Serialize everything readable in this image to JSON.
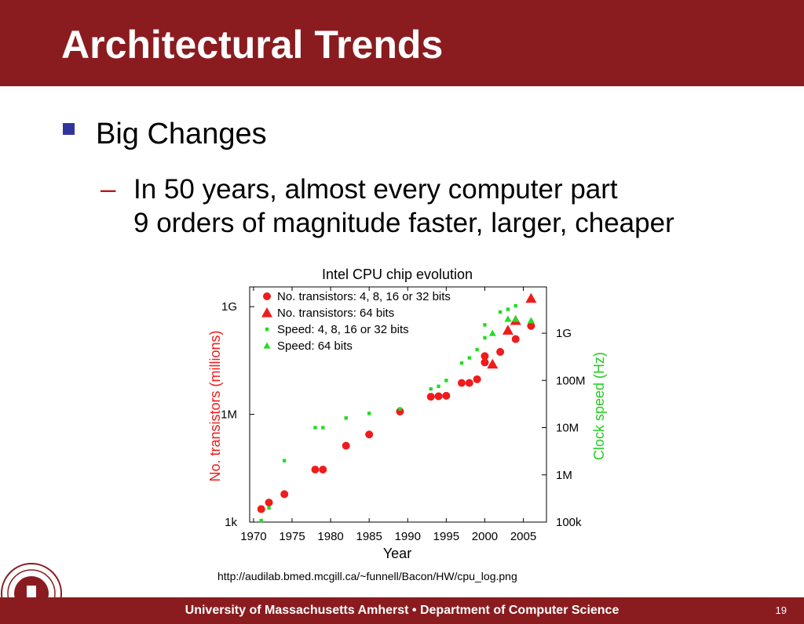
{
  "slide": {
    "title": "Architectural Trends",
    "bullet1": "Big Changes",
    "bullet2_dash": "–",
    "bullet2_line1": "In 50 years, almost every computer part",
    "bullet2_line2": "9 orders of magnitude faster, larger, cheaper",
    "source_url": "http://audilab.bmed.mcgill.ca/~funnell/Bacon/HW/cpu_log.png",
    "footer_text": "University of Massachusetts Amherst • Department of Computer Science",
    "page_number": "19"
  },
  "colors": {
    "brand": "#8a1c1f",
    "bullet_square": "#3333a0",
    "dash": "#b31b1b",
    "transistors": "#ee1c1c",
    "speed": "#22dd22"
  },
  "chart_data": {
    "type": "scatter",
    "title": "Intel CPU chip evolution",
    "xlabel": "Year",
    "ylabel_left": "No. transistors (millions)",
    "ylabel_right": "Clock speed (Hz)",
    "x_ticks": [
      "1970",
      "1975",
      "1980",
      "1985",
      "1990",
      "1995",
      "2000",
      "2005"
    ],
    "y_left_ticks": [
      "1k",
      "1M",
      "1G"
    ],
    "y_right_ticks": [
      "100k",
      "1M",
      "10M",
      "100M",
      "1G"
    ],
    "xlim": [
      1969.5,
      2008
    ],
    "grid": false,
    "legend_position": "top-left",
    "legend": [
      "No. transistors: 4, 8, 16 or 32 bits",
      "No. transistors: 64 bits",
      "Speed: 4, 8, 16 or 32 bits",
      "Speed: 64 bits"
    ],
    "series": [
      {
        "marker": "circle",
        "axis": "left",
        "color_key": "transistors",
        "points": [
          [
            1971,
            2300
          ],
          [
            1972,
            3500
          ],
          [
            1974,
            6000
          ],
          [
            1978,
            29000
          ],
          [
            1979,
            29000
          ],
          [
            1982,
            134000
          ],
          [
            1985,
            275000
          ],
          [
            1989,
            1200000
          ],
          [
            1993,
            3100000
          ],
          [
            1994,
            3200000
          ],
          [
            1995,
            3300000
          ],
          [
            1997,
            7500000
          ],
          [
            1998,
            7500000
          ],
          [
            1999,
            9500000
          ],
          [
            2000,
            42000000
          ],
          [
            2000,
            28000000
          ],
          [
            2002,
            55000000
          ],
          [
            2004,
            125000000
          ],
          [
            2006,
            291000000
          ]
        ]
      },
      {
        "marker": "triangle",
        "axis": "left",
        "color_key": "transistors",
        "points": [
          [
            2001,
            25000000
          ],
          [
            2003,
            220000000
          ],
          [
            2004,
            410000000
          ],
          [
            2006,
            1700000000
          ]
        ]
      },
      {
        "marker": "square",
        "axis": "right",
        "color_key": "speed",
        "points": [
          [
            1971,
            108000
          ],
          [
            1972,
            200000
          ],
          [
            1974,
            2000000
          ],
          [
            1978,
            10000000
          ],
          [
            1979,
            10000000
          ],
          [
            1982,
            16000000
          ],
          [
            1985,
            20000000
          ],
          [
            1989,
            25000000
          ],
          [
            1993,
            66000000
          ],
          [
            1994,
            75000000
          ],
          [
            1995,
            100000000
          ],
          [
            1997,
            233000000
          ],
          [
            1998,
            300000000
          ],
          [
            1999,
            450000000
          ],
          [
            2000,
            800000000
          ],
          [
            2000,
            1500000000
          ],
          [
            2002,
            2800000000
          ],
          [
            2003,
            3200000000
          ],
          [
            2004,
            3800000000
          ]
        ]
      },
      {
        "marker": "triangle",
        "axis": "right",
        "color_key": "speed",
        "points": [
          [
            2001,
            1000000000
          ],
          [
            2003,
            2000000000
          ],
          [
            2004,
            2000000000
          ],
          [
            2006,
            1860000000
          ]
        ]
      }
    ]
  }
}
